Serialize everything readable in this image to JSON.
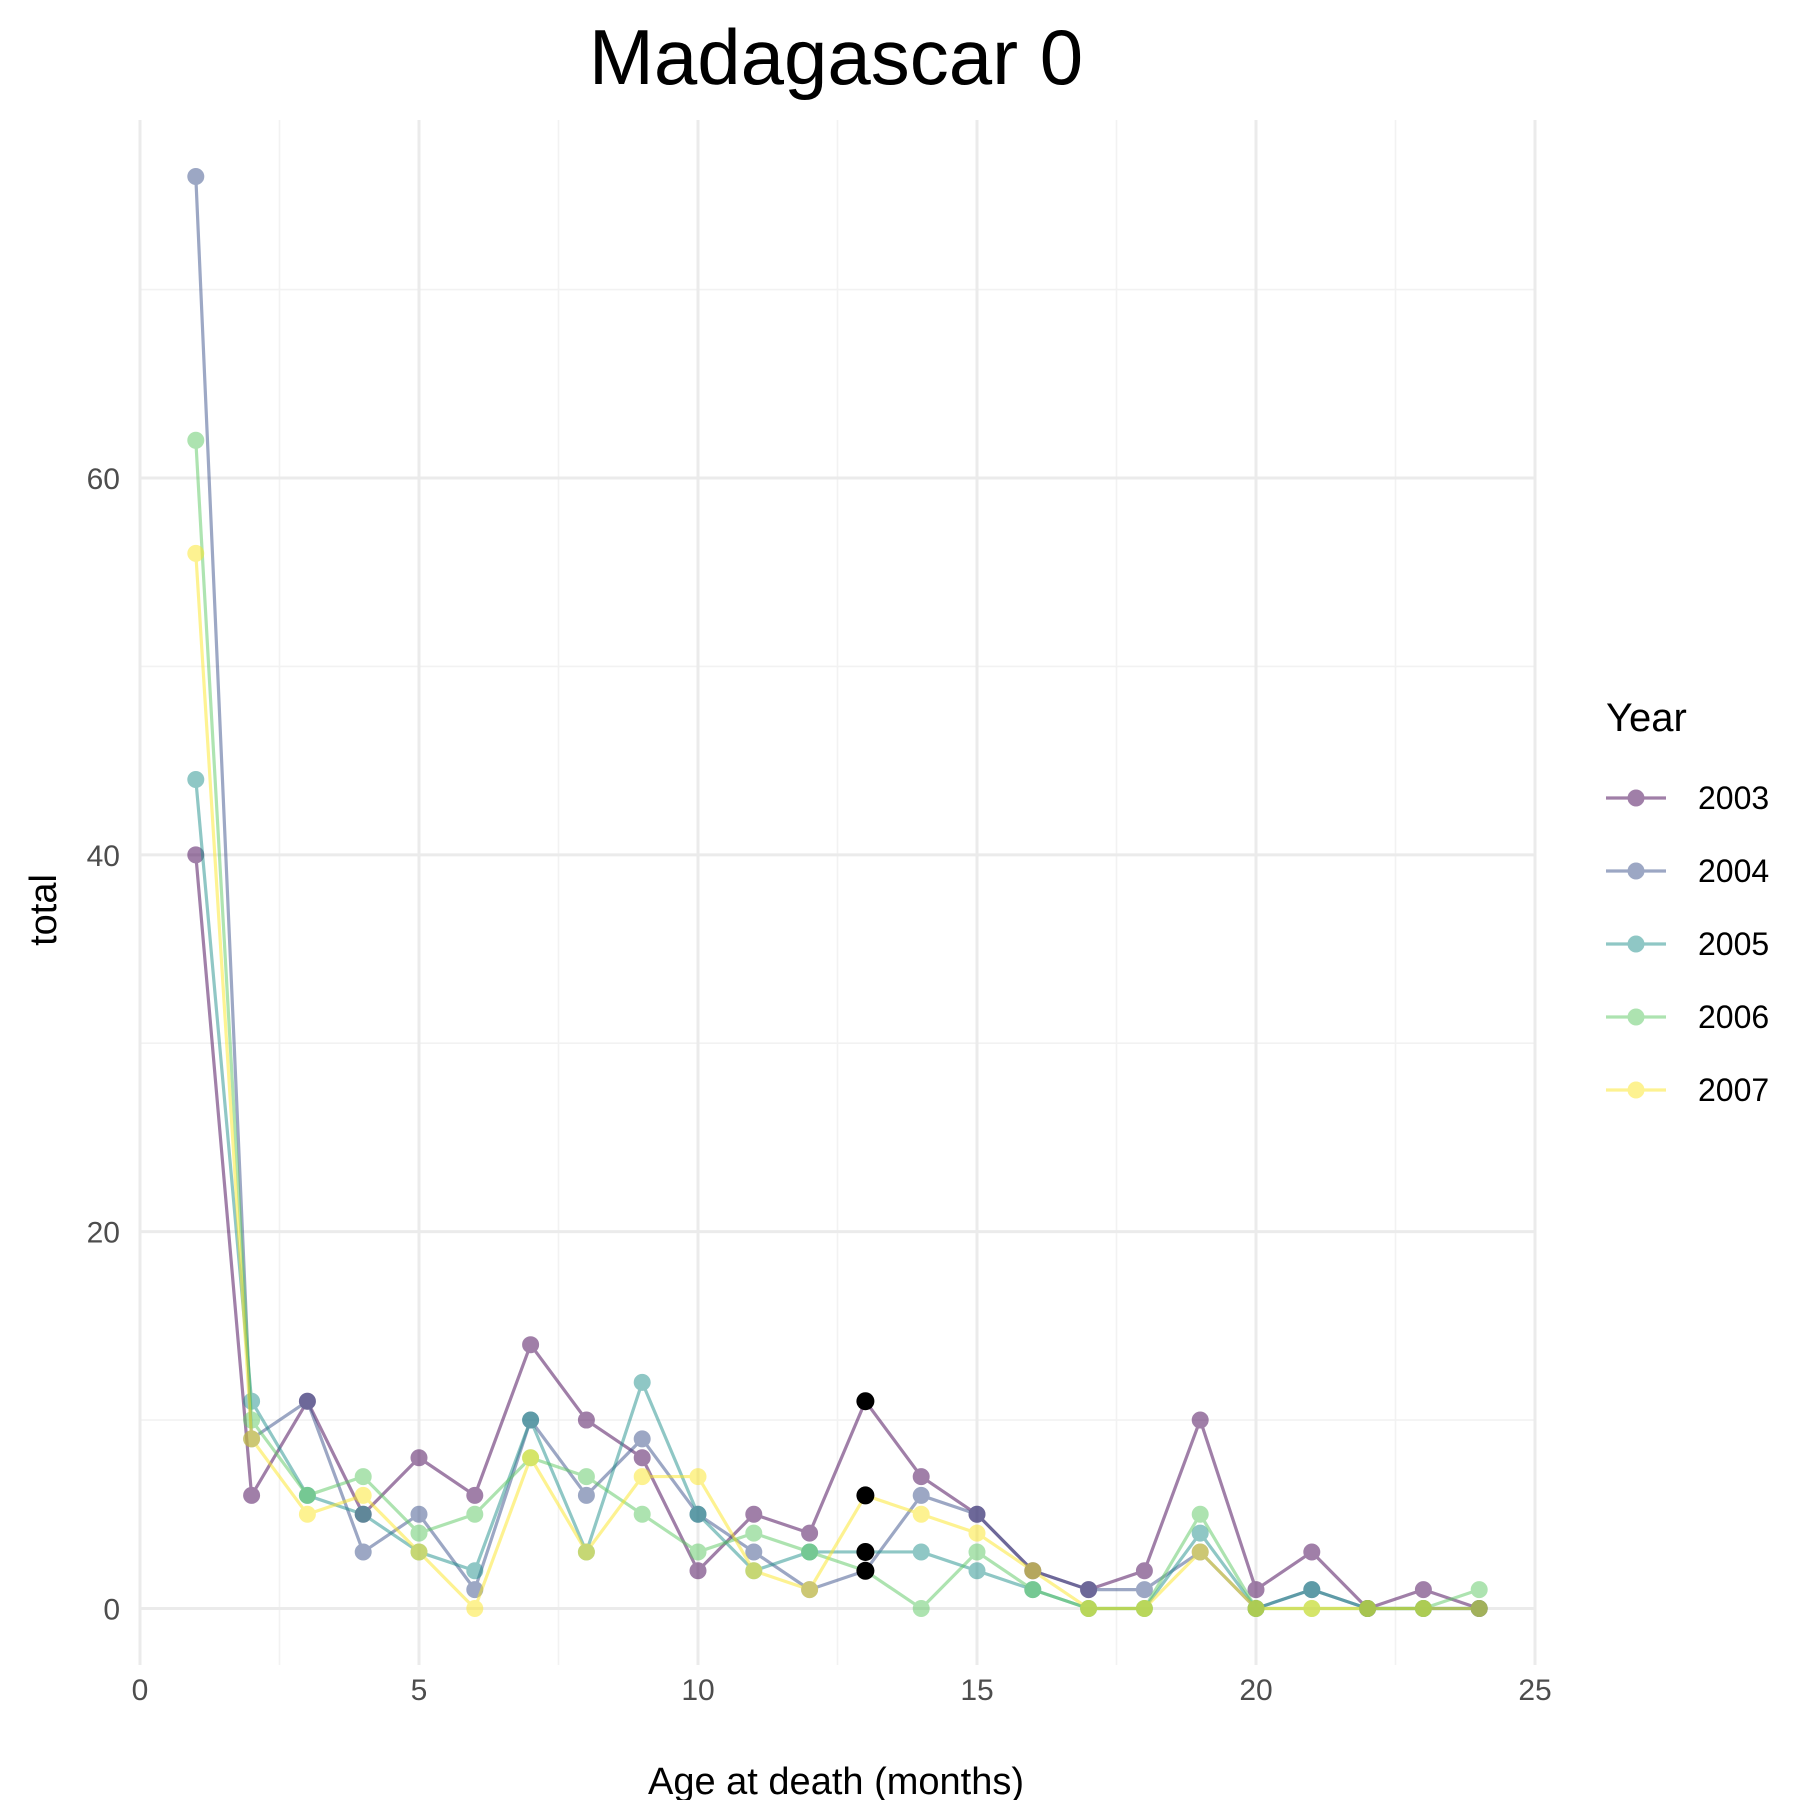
{
  "chart_data": {
    "type": "line",
    "title": "Madagascar 0",
    "xlabel": "Age at death (months)",
    "ylabel": "total",
    "xlim": [
      0,
      25
    ],
    "ylim": [
      -3,
      79
    ],
    "x_ticks": [
      0,
      5,
      10,
      15,
      20,
      25
    ],
    "y_ticks": [
      0,
      20,
      40,
      60
    ],
    "grid": true,
    "legend": {
      "title": "Year",
      "position": "right"
    },
    "x": [
      1,
      2,
      3,
      4,
      5,
      6,
      7,
      8,
      9,
      10,
      11,
      12,
      13,
      14,
      15,
      16,
      17,
      18,
      19,
      20,
      21,
      22,
      23,
      24
    ],
    "series": [
      {
        "name": "2003",
        "color": "#440154",
        "values": [
          40,
          6,
          11,
          5,
          8,
          6,
          14,
          10,
          8,
          2,
          5,
          4,
          11,
          7,
          5,
          2,
          1,
          2,
          10,
          1,
          3,
          0,
          1,
          0
        ]
      },
      {
        "name": "2004",
        "color": "#3b528b",
        "values": [
          76,
          9,
          11,
          3,
          5,
          1,
          10,
          6,
          9,
          5,
          3,
          1,
          2,
          6,
          5,
          2,
          1,
          1,
          3,
          0,
          1,
          0,
          0,
          0
        ]
      },
      {
        "name": "2005",
        "color": "#21908c",
        "values": [
          44,
          11,
          6,
          5,
          3,
          2,
          10,
          3,
          12,
          5,
          2,
          3,
          3,
          3,
          2,
          1,
          0,
          0,
          4,
          0,
          1,
          0,
          0,
          0
        ]
      },
      {
        "name": "2006",
        "color": "#5dc963",
        "values": [
          62,
          10,
          6,
          7,
          4,
          5,
          8,
          7,
          5,
          3,
          4,
          3,
          2,
          0,
          3,
          1,
          0,
          0,
          5,
          0,
          0,
          0,
          0,
          1
        ]
      },
      {
        "name": "2007",
        "color": "#fde725",
        "values": [
          56,
          9,
          5,
          6,
          3,
          0,
          8,
          3,
          7,
          7,
          2,
          1,
          6,
          5,
          4,
          2,
          0,
          0,
          3,
          0,
          0,
          0,
          0,
          0
        ]
      }
    ],
    "highlight_points": {
      "color": "#000000",
      "x": [
        13,
        13,
        13,
        13
      ],
      "y": [
        11,
        6,
        3,
        2
      ]
    }
  }
}
